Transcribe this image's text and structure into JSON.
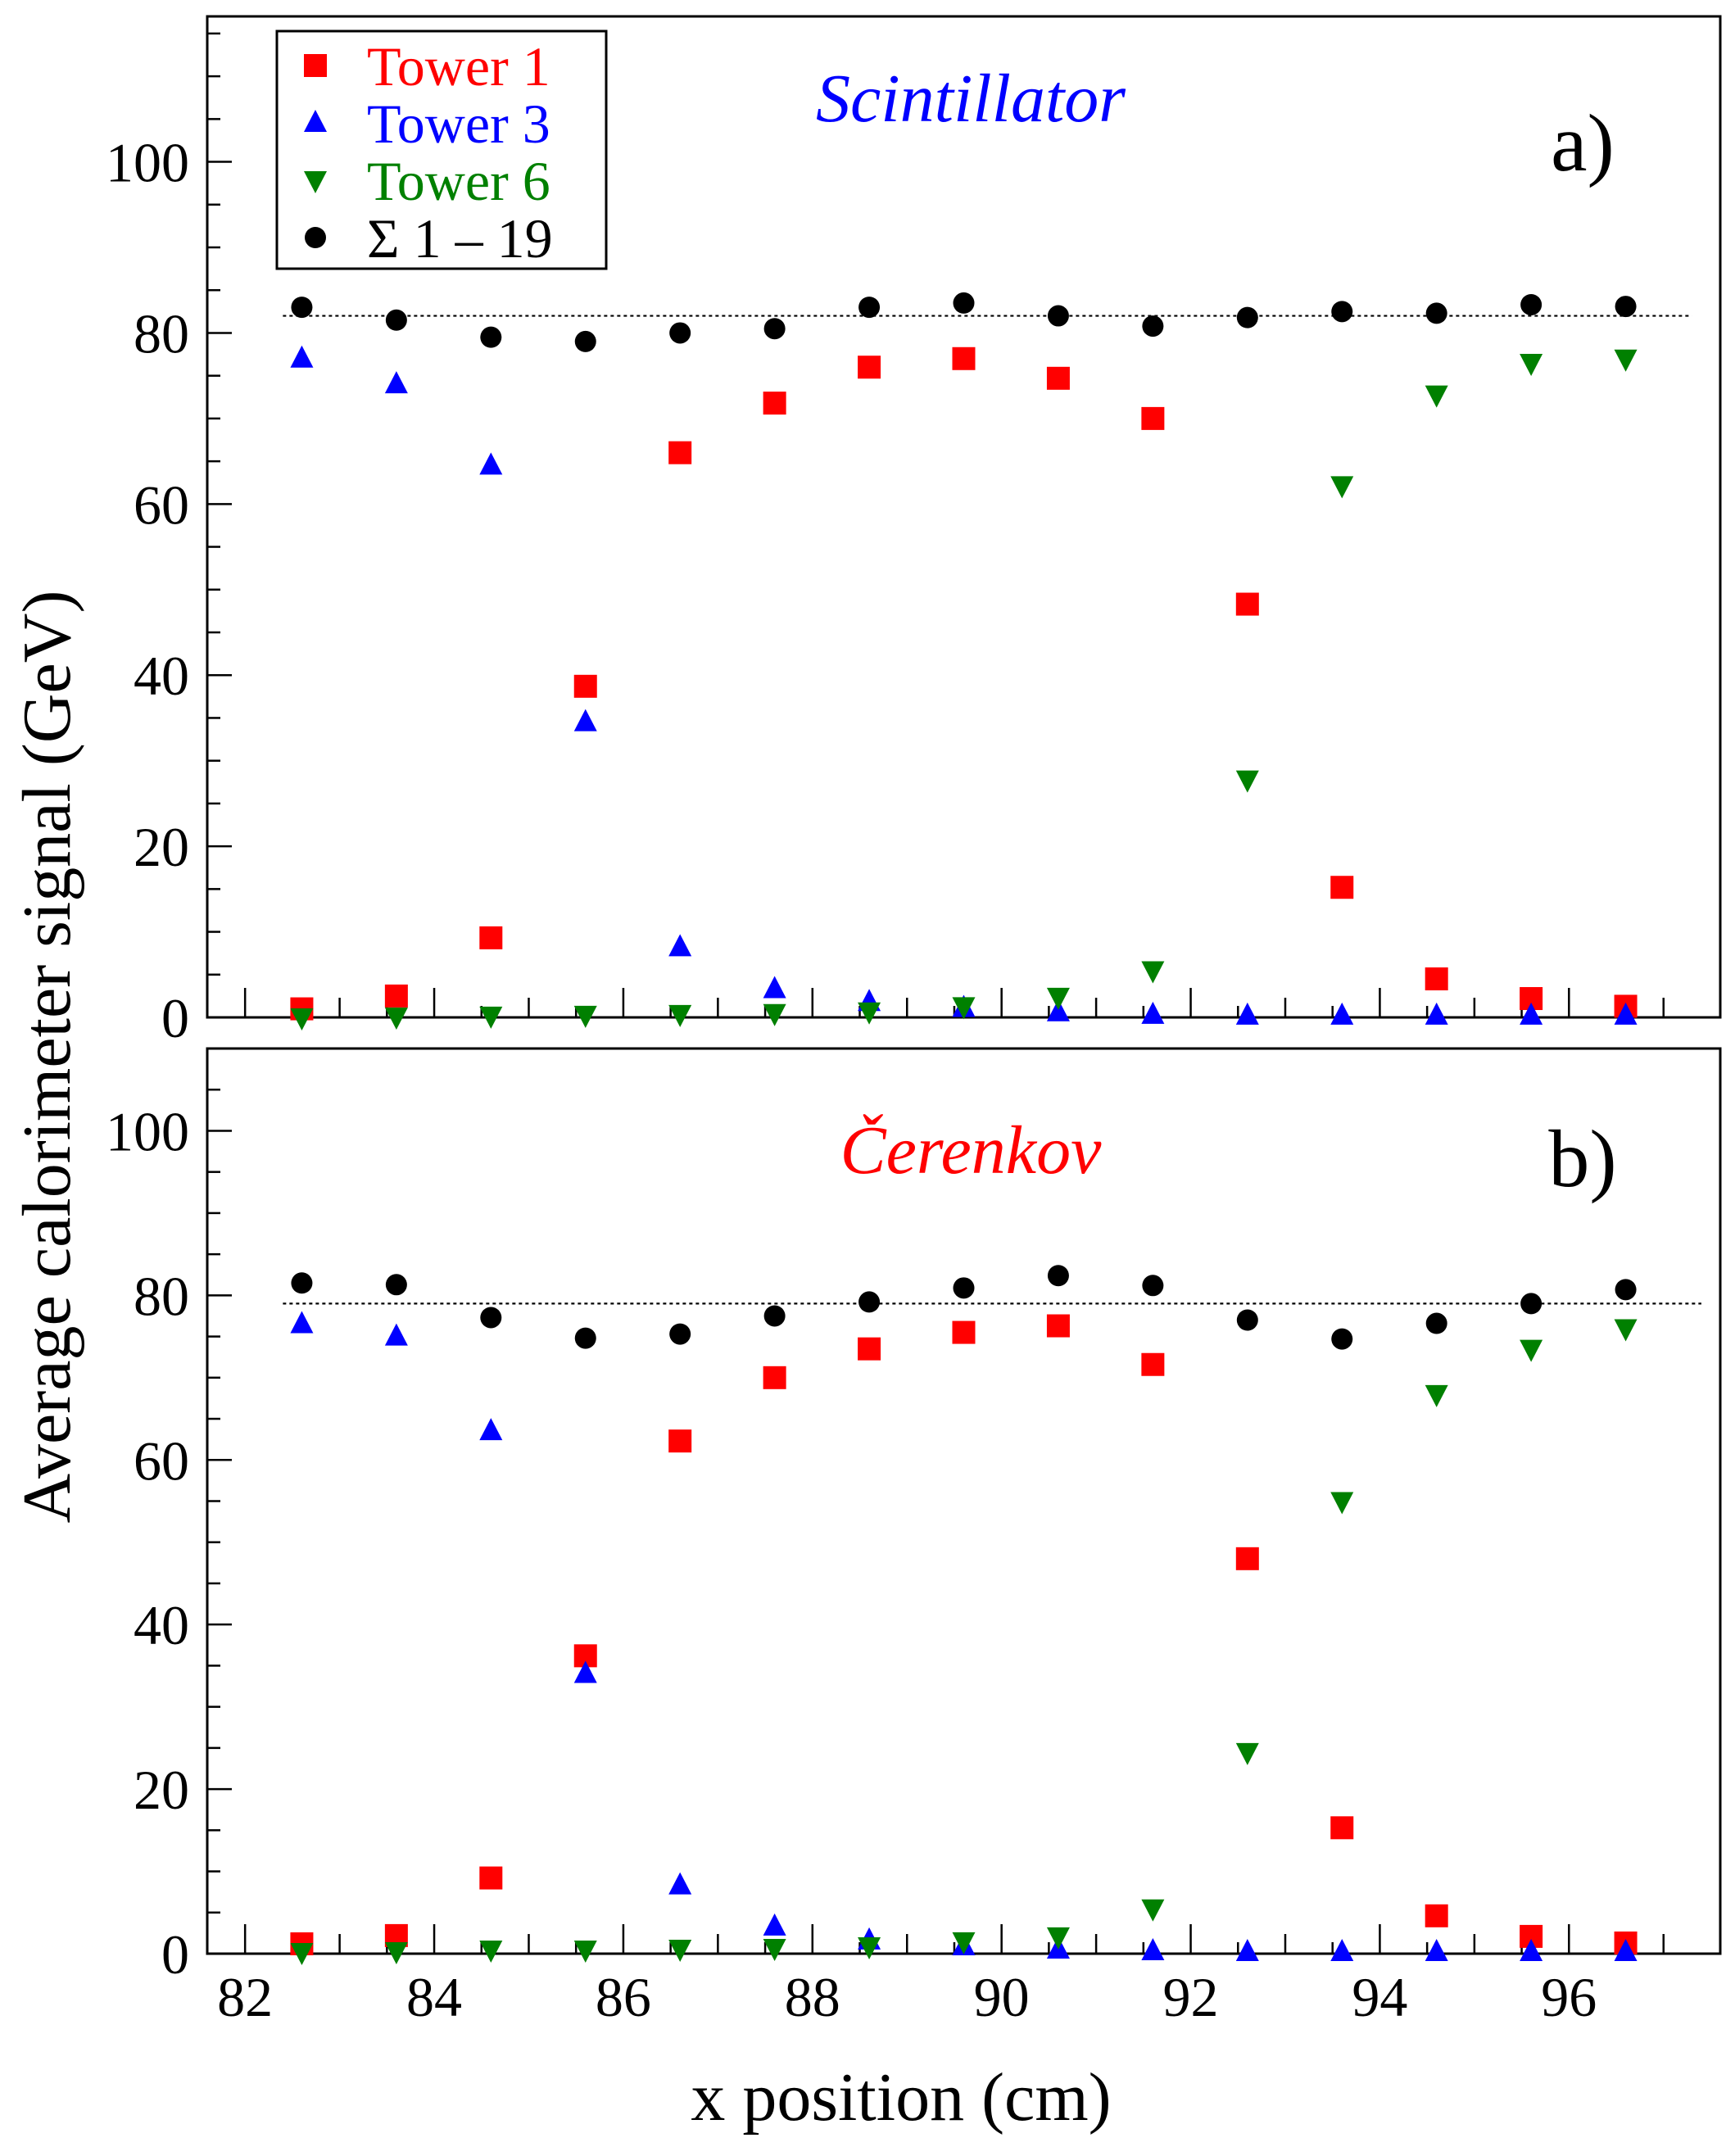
{
  "ylabel": "Average calorimeter signal (GeV)",
  "xlabel": "x position (cm)",
  "legend": {
    "items": [
      {
        "label": "Tower 1",
        "marker": "square",
        "color": "#ff0000"
      },
      {
        "label": "Tower 3",
        "marker": "triangle-up",
        "color": "#0000ff"
      },
      {
        "label": "Tower 6",
        "marker": "triangle-down",
        "color": "#008000"
      },
      {
        "label": "Σ 1 – 19",
        "marker": "circle",
        "color": "#000000"
      }
    ]
  },
  "chart_data": [
    {
      "type": "scatter",
      "panel_label": "a)",
      "title": "Scintillator",
      "title_color": "#0000ff",
      "xlim": [
        81.6,
        97.6
      ],
      "ylim": [
        0,
        117
      ],
      "x_ticks": [
        82,
        84,
        86,
        88,
        90,
        92,
        94,
        96
      ],
      "y_ticks": [
        0,
        20,
        40,
        60,
        80,
        100
      ],
      "grid": false,
      "legend_position": "top-left",
      "reference_line": {
        "y": 82,
        "x_range": [
          82.4,
          97.3
        ],
        "style": "dotted"
      },
      "x": [
        82.6,
        83.6,
        84.6,
        85.6,
        86.6,
        87.6,
        88.6,
        89.6,
        90.6,
        91.6,
        92.6,
        93.6,
        94.6,
        95.6,
        96.6
      ],
      "series": [
        {
          "name": "Tower 1",
          "marker": "square",
          "color": "#ff0000",
          "values": [
            1,
            2.5,
            9.3,
            38.7,
            66,
            71.8,
            76,
            77,
            74.7,
            70,
            48.3,
            15.2,
            4.5,
            2.2,
            1.3
          ]
        },
        {
          "name": "Tower 3",
          "marker": "triangle-up",
          "color": "#0000ff",
          "values": [
            77,
            74,
            64.5,
            34.5,
            8.2,
            3.3,
            1.8,
            1.1,
            0.6,
            0.3,
            0.2,
            0.2,
            0.2,
            0.2,
            0.2
          ]
        },
        {
          "name": "Tower 6",
          "marker": "triangle-down",
          "color": "#008000",
          "values": [
            0,
            0.1,
            0.2,
            0.3,
            0.4,
            0.5,
            0.7,
            1.3,
            2.4,
            5.5,
            27.8,
            62.2,
            72.8,
            76.5,
            77
          ]
        },
        {
          "name": "Σ 1 – 19",
          "marker": "circle",
          "color": "#000000",
          "values": [
            83,
            81.5,
            79.5,
            79,
            80,
            80.5,
            83,
            83.5,
            82,
            80.8,
            81.8,
            82.5,
            82.3,
            83.3,
            83.1
          ]
        }
      ]
    },
    {
      "type": "scatter",
      "panel_label": "b)",
      "title": "Čerenkov",
      "title_color": "#ff0000",
      "xlim": [
        81.6,
        97.6
      ],
      "ylim": [
        0,
        110
      ],
      "x_ticks": [
        82,
        84,
        86,
        88,
        90,
        92,
        94,
        96
      ],
      "y_ticks": [
        0,
        20,
        40,
        60,
        80,
        100
      ],
      "grid": false,
      "reference_line": {
        "y": 79,
        "x_range": [
          82.4,
          97.4
        ],
        "style": "dotted"
      },
      "x": [
        82.6,
        83.6,
        84.6,
        85.6,
        86.6,
        87.6,
        88.6,
        89.6,
        90.6,
        91.6,
        92.6,
        93.6,
        94.6,
        95.6,
        96.6
      ],
      "series": [
        {
          "name": "Tower 1",
          "marker": "square",
          "color": "#ff0000",
          "values": [
            1.2,
            2.2,
            9.2,
            36.2,
            62.3,
            70,
            73.5,
            75.5,
            76.3,
            71.6,
            48,
            15.3,
            4.6,
            2.1,
            1.3
          ]
        },
        {
          "name": "Tower 3",
          "marker": "triangle-up",
          "color": "#0000ff",
          "values": [
            76.5,
            75,
            63.5,
            34,
            8.3,
            3.3,
            1.6,
            0.9,
            0.5,
            0.3,
            0.2,
            0.2,
            0.2,
            0.2,
            0.2
          ]
        },
        {
          "name": "Tower 6",
          "marker": "triangle-down",
          "color": "#008000",
          "values": [
            0.2,
            0.3,
            0.5,
            0.5,
            0.6,
            0.7,
            0.9,
            1.5,
            2.1,
            5.5,
            24.5,
            55,
            68,
            73.5,
            76
          ]
        },
        {
          "name": "Σ 1 – 19",
          "marker": "circle",
          "color": "#000000",
          "values": [
            81.5,
            81.3,
            77.3,
            74.8,
            75.3,
            77.5,
            79.2,
            80.9,
            82.4,
            81.2,
            77,
            74.7,
            76.6,
            79,
            80.7
          ]
        }
      ]
    }
  ]
}
